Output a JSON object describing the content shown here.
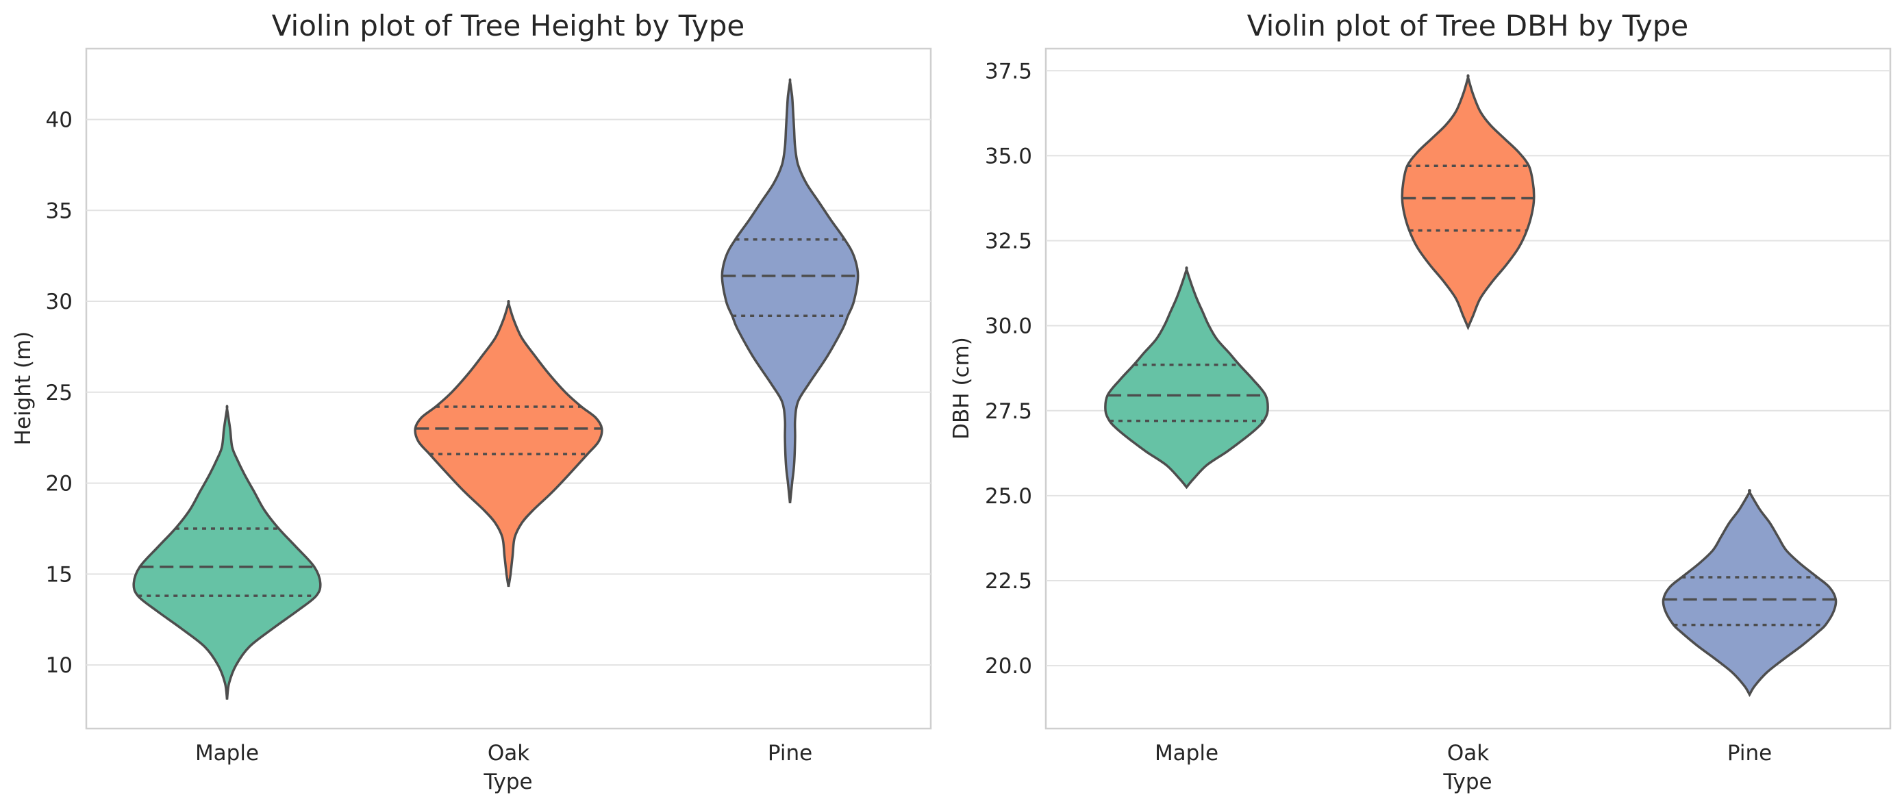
{
  "chart_data": [
    {
      "type": "violin",
      "title": "Violin plot of Tree Height by Type",
      "xlabel": "Type",
      "ylabel": "Height (m)",
      "categories": [
        "Maple",
        "Oak",
        "Pine"
      ],
      "ylim": [
        6.5,
        43.9
      ],
      "yticks": [
        10,
        15,
        20,
        25,
        30,
        35,
        40
      ],
      "ytick_labels": [
        "10",
        "15",
        "20",
        "25",
        "30",
        "35",
        "40"
      ],
      "grid": true,
      "colors": [
        "#66c2a5",
        "#fc8d62",
        "#8da0cb"
      ],
      "series": [
        {
          "category": "Maple",
          "min": 8.1,
          "q1": 13.8,
          "median": 15.4,
          "q3": 17.5,
          "max": 24.1,
          "density": [
            [
              8.1,
              0.0
            ],
            [
              9.0,
              0.02
            ],
            [
              10.0,
              0.09
            ],
            [
              11.0,
              0.22
            ],
            [
              12.0,
              0.45
            ],
            [
              13.0,
              0.7
            ],
            [
              13.8,
              0.88
            ],
            [
              14.5,
              0.92
            ],
            [
              15.4,
              0.86
            ],
            [
              16.5,
              0.68
            ],
            [
              17.5,
              0.51
            ],
            [
              18.5,
              0.37
            ],
            [
              19.5,
              0.27
            ],
            [
              20.5,
              0.17
            ],
            [
              21.3,
              0.1
            ],
            [
              22.0,
              0.05
            ],
            [
              23.0,
              0.03
            ],
            [
              24.1,
              0.0
            ]
          ]
        },
        {
          "category": "Oak",
          "min": 14.3,
          "q1": 21.6,
          "median": 23.0,
          "q3": 24.2,
          "max": 29.9,
          "density": [
            [
              14.3,
              0.0
            ],
            [
              15.0,
              0.02
            ],
            [
              16.0,
              0.04
            ],
            [
              17.0,
              0.06
            ],
            [
              17.8,
              0.13
            ],
            [
              18.5,
              0.24
            ],
            [
              19.5,
              0.43
            ],
            [
              20.5,
              0.6
            ],
            [
              21.6,
              0.78
            ],
            [
              22.3,
              0.89
            ],
            [
              23.0,
              0.92
            ],
            [
              23.6,
              0.86
            ],
            [
              24.2,
              0.72
            ],
            [
              25.0,
              0.56
            ],
            [
              26.0,
              0.4
            ],
            [
              27.0,
              0.26
            ],
            [
              28.0,
              0.13
            ],
            [
              29.0,
              0.05
            ],
            [
              29.9,
              0.0
            ]
          ]
        },
        {
          "category": "Pine",
          "min": 18.9,
          "q1": 29.2,
          "median": 31.4,
          "q3": 33.4,
          "max": 42.1,
          "density": [
            [
              18.9,
              0.0
            ],
            [
              20.0,
              0.02
            ],
            [
              21.0,
              0.04
            ],
            [
              22.5,
              0.05
            ],
            [
              23.5,
              0.05
            ],
            [
              24.5,
              0.08
            ],
            [
              25.5,
              0.19
            ],
            [
              27.0,
              0.37
            ],
            [
              28.5,
              0.52
            ],
            [
              29.2,
              0.57
            ],
            [
              30.0,
              0.63
            ],
            [
              31.4,
              0.67
            ],
            [
              32.5,
              0.63
            ],
            [
              33.4,
              0.54
            ],
            [
              34.5,
              0.4
            ],
            [
              35.5,
              0.28
            ],
            [
              36.5,
              0.16
            ],
            [
              37.5,
              0.08
            ],
            [
              38.5,
              0.05
            ],
            [
              39.5,
              0.04
            ],
            [
              40.5,
              0.03
            ],
            [
              41.3,
              0.02
            ],
            [
              42.1,
              0.0
            ]
          ]
        }
      ]
    },
    {
      "type": "violin",
      "title": "Violin plot of Tree DBH by Type",
      "xlabel": "Type",
      "ylabel": "DBH (cm)",
      "categories": [
        "Maple",
        "Oak",
        "Pine"
      ],
      "ylim": [
        18.15,
        38.15
      ],
      "yticks": [
        20.0,
        22.5,
        25.0,
        27.5,
        30.0,
        32.5,
        35.0,
        37.5
      ],
      "ytick_labels": [
        "20.0",
        "22.5",
        "25.0",
        "27.5",
        "30.0",
        "32.5",
        "35.0",
        "37.5"
      ],
      "grid": true,
      "colors": [
        "#66c2a5",
        "#fc8d62",
        "#8da0cb"
      ],
      "series": [
        {
          "category": "Maple",
          "min": 25.25,
          "q1": 27.2,
          "median": 27.95,
          "q3": 28.85,
          "max": 31.65,
          "density": [
            [
              25.25,
              0.0
            ],
            [
              25.5,
              0.07
            ],
            [
              25.9,
              0.2
            ],
            [
              26.3,
              0.4
            ],
            [
              26.7,
              0.58
            ],
            [
              27.0,
              0.7
            ],
            [
              27.2,
              0.76
            ],
            [
              27.5,
              0.8
            ],
            [
              27.95,
              0.78
            ],
            [
              28.4,
              0.66
            ],
            [
              28.85,
              0.52
            ],
            [
              29.2,
              0.42
            ],
            [
              29.6,
              0.3
            ],
            [
              30.0,
              0.22
            ],
            [
              30.4,
              0.16
            ],
            [
              30.8,
              0.1
            ],
            [
              31.2,
              0.05
            ],
            [
              31.65,
              0.0
            ]
          ]
        },
        {
          "category": "Oak",
          "min": 29.95,
          "q1": 32.8,
          "median": 33.75,
          "q3": 34.7,
          "max": 37.3,
          "density": [
            [
              29.95,
              0.0
            ],
            [
              30.3,
              0.05
            ],
            [
              30.8,
              0.12
            ],
            [
              31.3,
              0.24
            ],
            [
              31.8,
              0.38
            ],
            [
              32.3,
              0.5
            ],
            [
              32.8,
              0.58
            ],
            [
              33.3,
              0.63
            ],
            [
              33.75,
              0.65
            ],
            [
              34.2,
              0.64
            ],
            [
              34.7,
              0.6
            ],
            [
              35.1,
              0.5
            ],
            [
              35.5,
              0.36
            ],
            [
              35.9,
              0.22
            ],
            [
              36.3,
              0.12
            ],
            [
              36.8,
              0.05
            ],
            [
              37.3,
              0.0
            ]
          ]
        },
        {
          "category": "Pine",
          "min": 19.15,
          "q1": 21.2,
          "median": 21.95,
          "q3": 22.6,
          "max": 25.1,
          "density": [
            [
              19.15,
              0.0
            ],
            [
              19.4,
              0.05
            ],
            [
              19.8,
              0.17
            ],
            [
              20.2,
              0.34
            ],
            [
              20.6,
              0.52
            ],
            [
              21.0,
              0.68
            ],
            [
              21.2,
              0.75
            ],
            [
              21.6,
              0.83
            ],
            [
              21.95,
              0.85
            ],
            [
              22.3,
              0.79
            ],
            [
              22.6,
              0.67
            ],
            [
              23.0,
              0.5
            ],
            [
              23.4,
              0.36
            ],
            [
              23.8,
              0.28
            ],
            [
              24.2,
              0.2
            ],
            [
              24.6,
              0.1
            ],
            [
              25.1,
              0.0
            ]
          ]
        }
      ]
    }
  ]
}
